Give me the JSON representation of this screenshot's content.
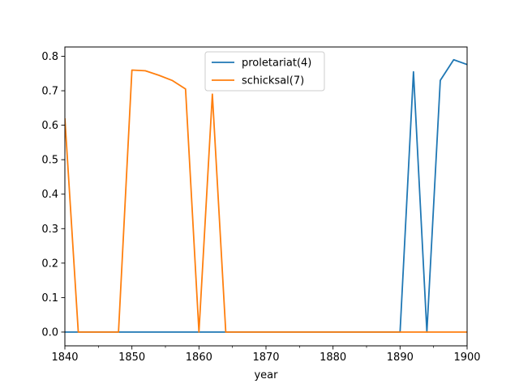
{
  "chart_data": {
    "type": "line",
    "title": "",
    "xlabel": "year",
    "ylabel": "",
    "xlim": [
      1840,
      1900
    ],
    "ylim": [
      -0.04,
      0.827
    ],
    "x_ticks": [
      1840,
      1850,
      1860,
      1870,
      1880,
      1890,
      1900
    ],
    "x_minor_ticks": [
      1845,
      1855,
      1865,
      1875,
      1885,
      1895
    ],
    "y_ticks": [
      0.0,
      0.1,
      0.2,
      0.3,
      0.4,
      0.5,
      0.6,
      0.7,
      0.8
    ],
    "x_tick_labels": [
      "1840",
      "1850",
      "1860",
      "1870",
      "1880",
      "1890",
      "1900"
    ],
    "y_tick_labels": [
      "0.0",
      "0.1",
      "0.2",
      "0.3",
      "0.4",
      "0.5",
      "0.6",
      "0.7",
      "0.8"
    ],
    "grid": false,
    "legend": {
      "placement": "top-center"
    },
    "series": [
      {
        "name": "proletariat(4)",
        "color": "#1f77b4",
        "x": [
          1840,
          1842,
          1844,
          1846,
          1848,
          1850,
          1852,
          1854,
          1856,
          1858,
          1860,
          1862,
          1864,
          1866,
          1868,
          1870,
          1872,
          1874,
          1876,
          1878,
          1880,
          1882,
          1884,
          1886,
          1888,
          1890,
          1892,
          1894,
          1896,
          1898,
          1900
        ],
        "y": [
          0,
          0,
          0,
          0,
          0,
          0,
          0,
          0,
          0,
          0,
          0,
          0,
          0,
          0,
          0,
          0,
          0,
          0,
          0,
          0,
          0,
          0,
          0,
          0,
          0,
          0,
          0.755,
          0,
          0.73,
          0.79,
          0.776
        ]
      },
      {
        "name": "schicksal(7)",
        "color": "#ff7f0e",
        "x": [
          1840,
          1842,
          1844,
          1846,
          1848,
          1850,
          1852,
          1854,
          1856,
          1858,
          1860,
          1862,
          1864,
          1866,
          1868,
          1870,
          1872,
          1874,
          1876,
          1878,
          1880,
          1882,
          1884,
          1886,
          1888,
          1890,
          1892,
          1894,
          1896,
          1898,
          1900
        ],
        "y": [
          0.62,
          0,
          0,
          0,
          0,
          0.76,
          0.758,
          0.745,
          0.73,
          0.705,
          0,
          0.69,
          0,
          0,
          0,
          0,
          0,
          0,
          0,
          0,
          0,
          0,
          0,
          0,
          0,
          0,
          0,
          0,
          0,
          0,
          0
        ]
      }
    ]
  }
}
